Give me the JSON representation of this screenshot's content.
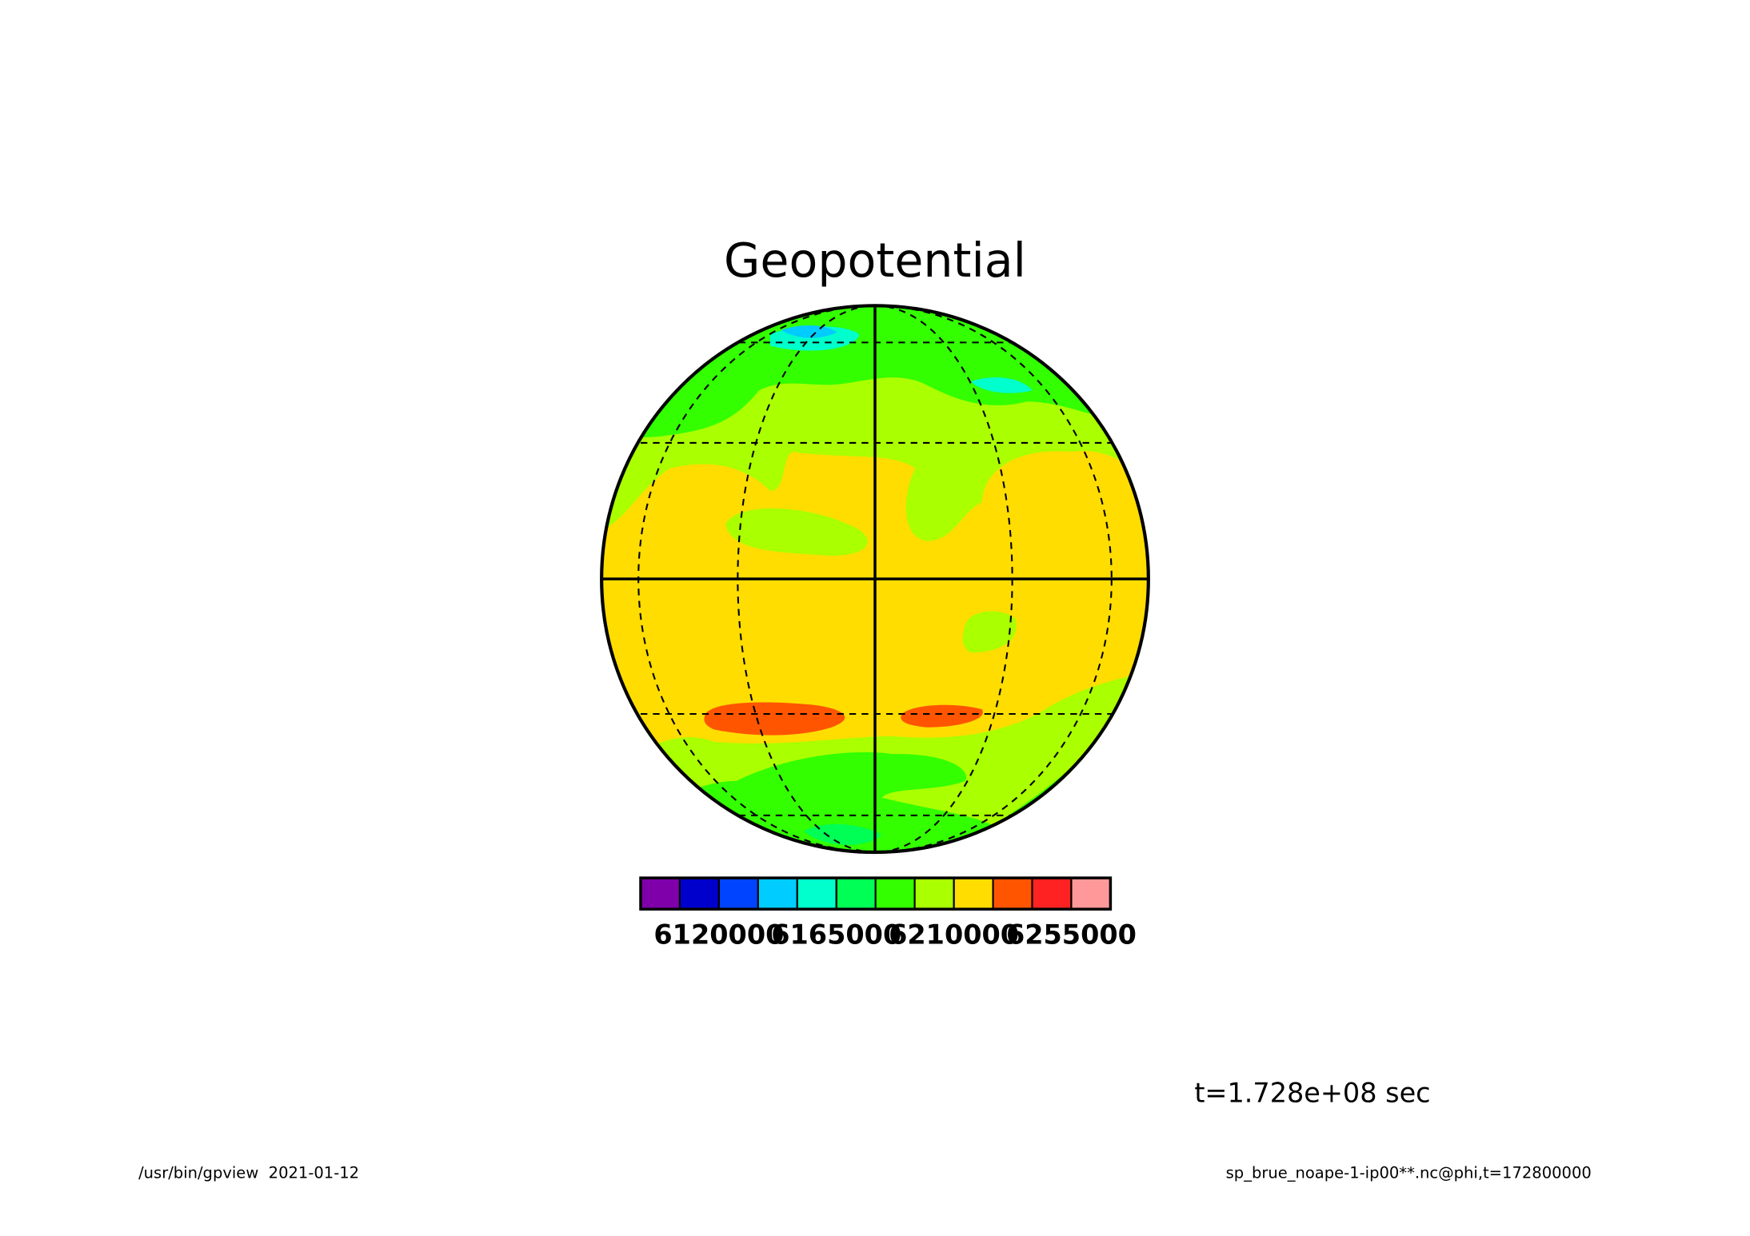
{
  "chart_data": {
    "type": "map",
    "title": "Geopotential",
    "annotation": "t=1.728e+08 sec",
    "footer_left": "/usr/bin/gpview  2021-01-12",
    "footer_right": "sp_brue_noape-1-ip00**.nc@phi,t=172800000",
    "colorbar": {
      "colors": [
        "#7f00aa",
        "#0000cc",
        "#0044ff",
        "#00ccff",
        "#00ffcc",
        "#00ff55",
        "#33ff00",
        "#aaff00",
        "#ffdd00",
        "#ff5500",
        "#ff2222",
        "#ff9999"
      ],
      "lim": [
        6090000,
        6270000
      ],
      "ticks": [
        6120000,
        6165000,
        6210000,
        6255000
      ]
    }
  }
}
